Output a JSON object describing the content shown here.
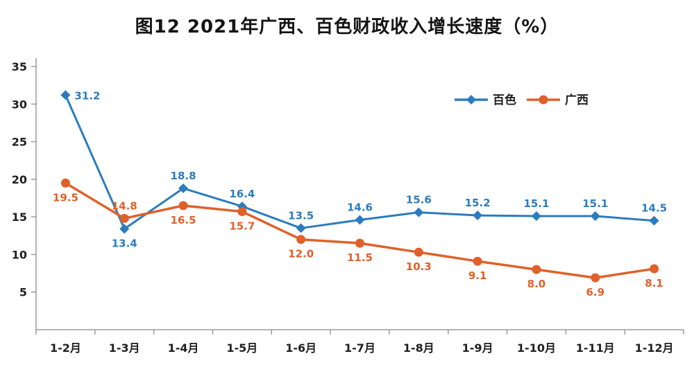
{
  "title": "图12  2021年广西、百色财政收入增长速度（%）",
  "chart_data": {
    "type": "line",
    "title": "图12  2021年广西、百色财政收入增长速度（%）",
    "xlabel": "",
    "ylabel": "",
    "ylim": [
      0,
      35
    ],
    "yticks": [
      5,
      10,
      15,
      20,
      25,
      30,
      35
    ],
    "grid": false,
    "legend_position": "top-right",
    "categories": [
      "1-2月",
      "1-3月",
      "1-4月",
      "1-5月",
      "1-6月",
      "1-7月",
      "1-8月",
      "1-9月",
      "1-10月",
      "1-11月",
      "1-12月"
    ],
    "series": [
      {
        "name": "百色",
        "color": "#2b7cbf",
        "marker": "diamond",
        "values": [
          31.2,
          13.4,
          18.8,
          16.4,
          13.5,
          14.6,
          15.6,
          15.2,
          15.1,
          15.1,
          14.5
        ],
        "label_positions": [
          "right",
          "below",
          "above",
          "above",
          "above",
          "above",
          "above",
          "above",
          "above",
          "above",
          "above"
        ]
      },
      {
        "name": "广西",
        "color": "#e0602a",
        "marker": "circle",
        "values": [
          19.5,
          14.8,
          16.5,
          15.7,
          12.0,
          11.5,
          10.3,
          9.1,
          8.0,
          6.9,
          8.1
        ],
        "label_positions": [
          "below",
          "above",
          "below",
          "below",
          "below",
          "below",
          "below",
          "below",
          "below",
          "below",
          "below"
        ]
      }
    ]
  }
}
